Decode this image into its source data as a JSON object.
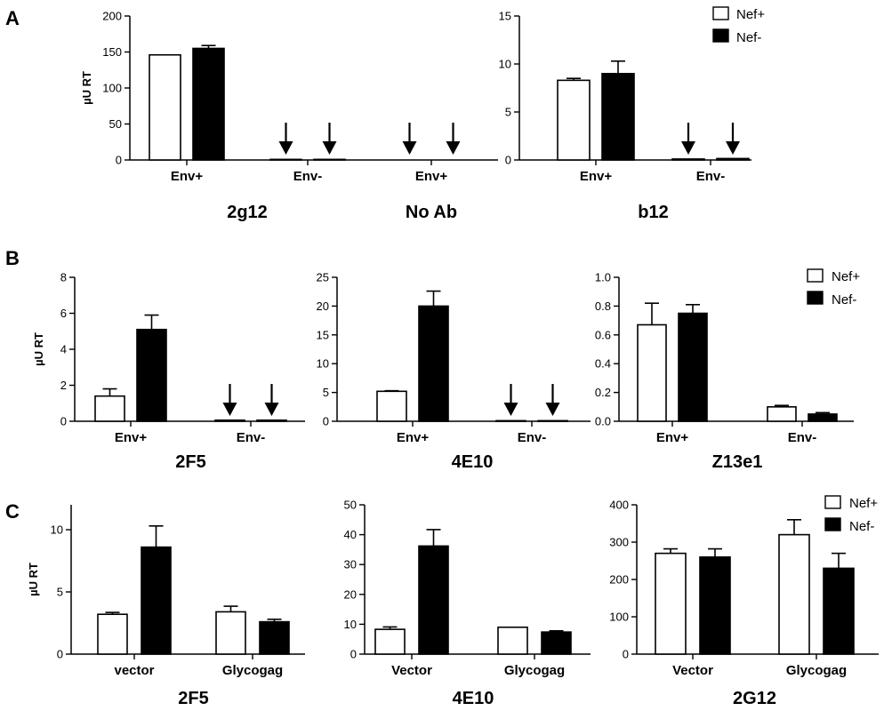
{
  "figure": {
    "panel_letters": [
      "A",
      "B",
      "C"
    ],
    "legend": {
      "entries": [
        {
          "label": "Nef+",
          "color": "#ffffff"
        },
        {
          "label": "Nef-",
          "color": "#000000"
        }
      ]
    },
    "colors": {
      "nef_plus": "#ffffff",
      "nef_minus": "#000000",
      "stroke": "#000000"
    }
  },
  "chart_data": [
    {
      "panel": "A",
      "type": "bar",
      "ylabel": "µU RT",
      "ylim": [
        0,
        200
      ],
      "yticks": [
        0,
        50,
        100,
        150,
        200
      ],
      "categories": [
        "Env+",
        "Env-",
        "Env+"
      ],
      "group_labels": [
        {
          "text": "2g12",
          "categories": [
            0,
            1
          ]
        },
        {
          "text": "No Ab",
          "categories": [
            2
          ]
        }
      ],
      "series": [
        {
          "name": "Nef+",
          "values": [
            146,
            0.8,
            0
          ],
          "errors": [
            0,
            0,
            0
          ]
        },
        {
          "name": "Nef-",
          "values": [
            155,
            0.8,
            0
          ],
          "errors": [
            4,
            0,
            0
          ]
        }
      ],
      "arrows": [
        [
          1,
          0
        ],
        [
          1,
          1
        ],
        [
          2,
          0
        ],
        [
          2,
          1
        ]
      ]
    },
    {
      "panel": "A2",
      "type": "bar",
      "ylabel": "",
      "ylim": [
        0,
        15
      ],
      "yticks": [
        0,
        5,
        10,
        15
      ],
      "categories": [
        "Env+",
        "Env-"
      ],
      "group_labels": [
        {
          "text": "b12",
          "categories": [
            0,
            1
          ]
        }
      ],
      "series": [
        {
          "name": "Nef+",
          "values": [
            8.3,
            0.1
          ],
          "errors": [
            0.2,
            0
          ]
        },
        {
          "name": "Nef-",
          "values": [
            9.0,
            0.15
          ],
          "errors": [
            1.3,
            0
          ]
        }
      ],
      "arrows": [
        [
          1,
          0
        ],
        [
          1,
          1
        ]
      ]
    },
    {
      "panel": "B",
      "type": "bar",
      "ylabel": "µU RT",
      "ylim": [
        0,
        8
      ],
      "yticks": [
        0,
        2,
        4,
        6,
        8
      ],
      "categories": [
        "Env+",
        "Env-"
      ],
      "group_labels": [
        {
          "text": "2F5",
          "categories": [
            0,
            1
          ]
        }
      ],
      "series": [
        {
          "name": "Nef+",
          "values": [
            1.4,
            0.06
          ],
          "errors": [
            0.4,
            0
          ]
        },
        {
          "name": "Nef-",
          "values": [
            5.1,
            0.06
          ],
          "errors": [
            0.8,
            0
          ]
        }
      ],
      "arrows": [
        [
          1,
          0
        ],
        [
          1,
          1
        ]
      ]
    },
    {
      "panel": "B2",
      "type": "bar",
      "ylabel": "",
      "ylim": [
        0,
        25
      ],
      "yticks": [
        0,
        5,
        10,
        15,
        20,
        25
      ],
      "categories": [
        "Env+",
        "Env-"
      ],
      "group_labels": [
        {
          "text": "4E10",
          "categories": [
            0,
            1
          ]
        }
      ],
      "series": [
        {
          "name": "Nef+",
          "values": [
            5.2,
            0.1
          ],
          "errors": [
            0.1,
            0
          ]
        },
        {
          "name": "Nef-",
          "values": [
            20.0,
            0.1
          ],
          "errors": [
            2.6,
            0
          ]
        }
      ],
      "arrows": [
        [
          1,
          0
        ],
        [
          1,
          1
        ]
      ]
    },
    {
      "panel": "B3",
      "type": "bar",
      "ylabel": "",
      "ylim": [
        0,
        1.0
      ],
      "yticks": [
        0.0,
        0.2,
        0.4,
        0.6,
        0.8,
        1.0
      ],
      "tick_decimals": 1,
      "categories": [
        "Env+",
        "Env-"
      ],
      "group_labels": [
        {
          "text": "Z13e1",
          "categories": [
            0,
            1
          ]
        }
      ],
      "series": [
        {
          "name": "Nef+",
          "values": [
            0.67,
            0.1
          ],
          "errors": [
            0.15,
            0.01
          ]
        },
        {
          "name": "Nef-",
          "values": [
            0.75,
            0.05
          ],
          "errors": [
            0.06,
            0.01
          ]
        }
      ],
      "arrows": []
    },
    {
      "panel": "C",
      "type": "bar",
      "ylabel": "µU RT",
      "ylim": [
        0,
        12
      ],
      "yticks": [
        0,
        5,
        10
      ],
      "categories": [
        "vector",
        "Glycogag"
      ],
      "group_labels": [
        {
          "text": "2F5",
          "categories": [
            0,
            1
          ]
        }
      ],
      "series": [
        {
          "name": "Nef+",
          "values": [
            3.2,
            3.4
          ],
          "errors": [
            0.15,
            0.45
          ]
        },
        {
          "name": "Nef-",
          "values": [
            8.6,
            2.6
          ],
          "errors": [
            1.7,
            0.2
          ]
        }
      ],
      "arrows": []
    },
    {
      "panel": "C2",
      "type": "bar",
      "ylabel": "",
      "ylim": [
        0,
        50
      ],
      "yticks": [
        0,
        10,
        20,
        30,
        40,
        50
      ],
      "categories": [
        "Vector",
        "Glycogag"
      ],
      "group_labels": [
        {
          "text": "4E10",
          "categories": [
            0,
            1
          ]
        }
      ],
      "series": [
        {
          "name": "Nef+",
          "values": [
            8.3,
            9.0
          ],
          "errors": [
            0.8,
            0
          ]
        },
        {
          "name": "Nef-",
          "values": [
            36.2,
            7.4
          ],
          "errors": [
            5.5,
            0.4
          ]
        }
      ],
      "arrows": []
    },
    {
      "panel": "C3",
      "type": "bar",
      "ylabel": "",
      "ylim": [
        0,
        400
      ],
      "yticks": [
        0,
        100,
        200,
        300,
        400
      ],
      "categories": [
        "Vector",
        "Glycogag"
      ],
      "group_labels": [
        {
          "text": "2G12",
          "categories": [
            0,
            1
          ]
        }
      ],
      "series": [
        {
          "name": "Nef+",
          "values": [
            270,
            320
          ],
          "errors": [
            12,
            40
          ]
        },
        {
          "name": "Nef-",
          "values": [
            260,
            230
          ],
          "errors": [
            22,
            40
          ]
        }
      ],
      "arrows": []
    }
  ]
}
